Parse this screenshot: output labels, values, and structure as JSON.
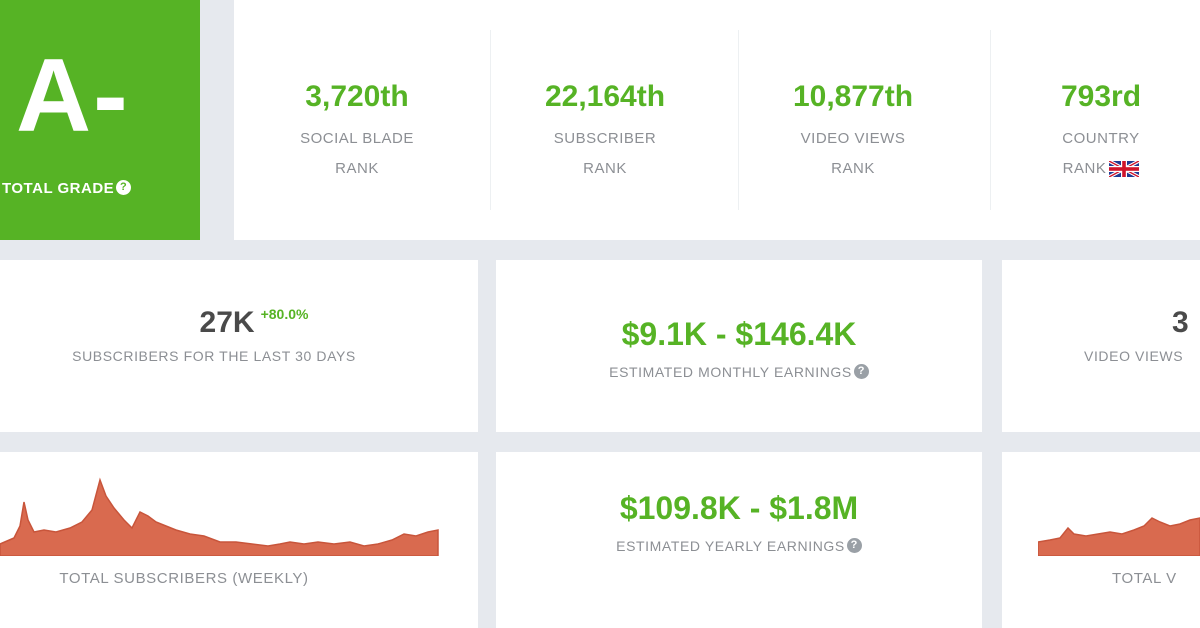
{
  "grade": {
    "letter": "A-",
    "label": "TOTAL GRADE",
    "help_icon": "question-circle-icon"
  },
  "ranks": [
    {
      "value": "3,720th",
      "line1": "SOCIAL BLADE",
      "line2": "RANK"
    },
    {
      "value": "22,164th",
      "line1": "SUBSCRIBER",
      "line2": "RANK"
    },
    {
      "value": "10,877th",
      "line1": "VIDEO VIEWS",
      "line2": "RANK"
    },
    {
      "value": "793rd",
      "line1": "COUNTRY",
      "line2": "RANK",
      "flag_icon": "uk-flag-icon"
    }
  ],
  "stats": {
    "subscribers_30d": {
      "value": "27K",
      "change": "+80.0%",
      "label": "SUBSCRIBERS FOR THE LAST 30 DAYS"
    },
    "monthly_earnings": {
      "value": "$9.1K - $146.4K",
      "label": "ESTIMATED MONTHLY EARNINGS"
    },
    "video_views_30d": {
      "value": "3",
      "label": "VIDEO VIEWS"
    },
    "yearly_earnings": {
      "value": "$109.8K - $1.8M",
      "label": "ESTIMATED YEARLY EARNINGS"
    }
  },
  "charts": {
    "total_subscribers": {
      "label": "TOTAL SUBSCRIBERS (WEEKLY)"
    },
    "total_views": {
      "label": "TOTAL V"
    }
  },
  "colors": {
    "accent_green": "#56b325",
    "chart_fill": "#d96a4f",
    "chart_line": "#c8553b",
    "background": "#e6e9ee"
  }
}
